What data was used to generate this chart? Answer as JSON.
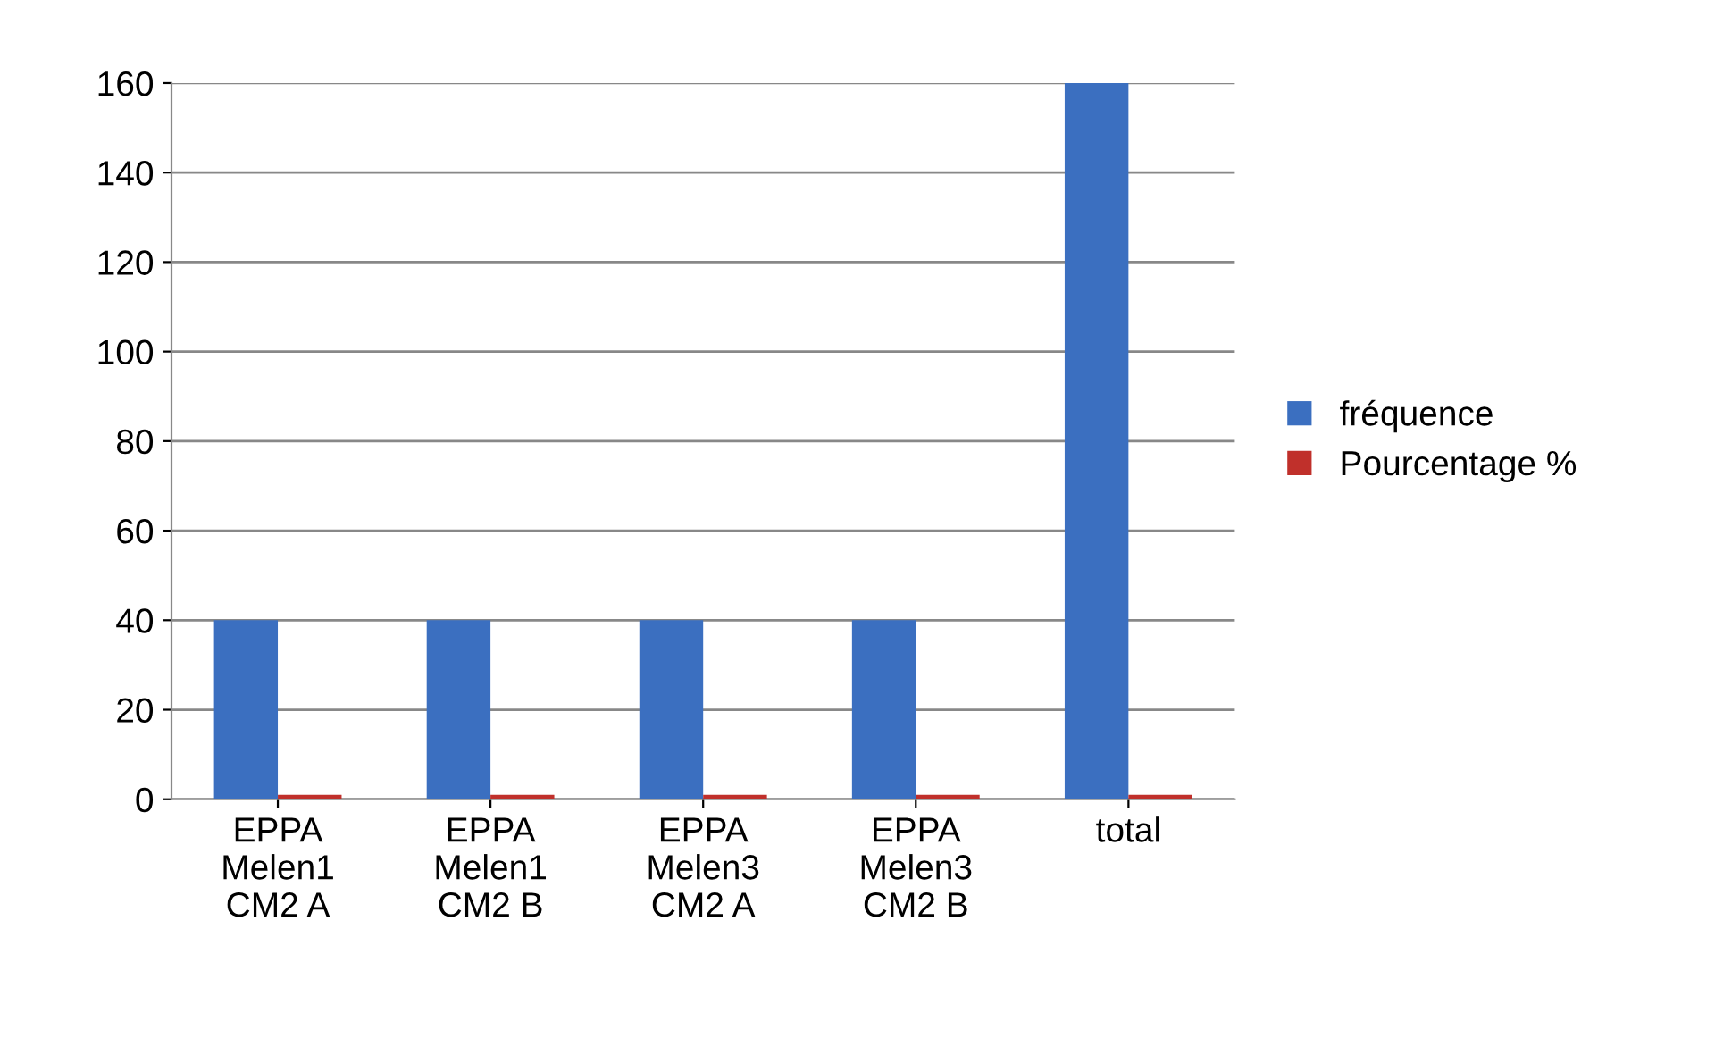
{
  "chart_data": {
    "type": "bar",
    "categories": [
      "EPPA\nMelen1\nCM2 A",
      "EPPA\nMelen1\nCM2 B",
      "EPPA\nMelen3\nCM2 A",
      "EPPA\nMelen3\nCM2 B",
      "total"
    ],
    "series": [
      {
        "name": "fréquence",
        "color": "#3b6fc0",
        "values": [
          40,
          40,
          40,
          40,
          160
        ]
      },
      {
        "name": "Pourcentage %",
        "color": "#c0302b",
        "values": [
          1,
          1,
          1,
          1,
          1
        ]
      }
    ],
    "ylim": [
      0,
      160
    ],
    "yticks": [
      0,
      20,
      40,
      60,
      80,
      100,
      120,
      140,
      160
    ],
    "grid": "y",
    "legend": "right"
  }
}
